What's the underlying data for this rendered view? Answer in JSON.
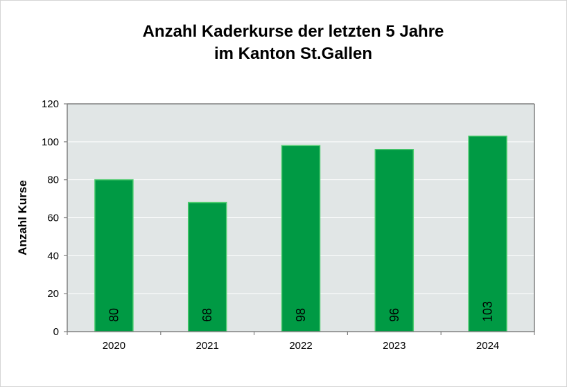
{
  "chart_data": {
    "type": "bar",
    "title": [
      "Anzahl Kaderkurse der letzten 5 Jahre",
      "im Kanton St.Gallen"
    ],
    "xlabel": "",
    "ylabel": "Anzahl Kurse",
    "categories": [
      "2020",
      "2021",
      "2022",
      "2023",
      "2024"
    ],
    "values": [
      80,
      68,
      98,
      96,
      103
    ],
    "data_labels": [
      "80",
      "68",
      "98",
      "96",
      "103"
    ],
    "ylim": [
      0,
      120
    ],
    "yticks": [
      0,
      20,
      40,
      60,
      80,
      100,
      120
    ],
    "ytick_labels": [
      "0",
      "20",
      "40",
      "60",
      "80",
      "100",
      "120"
    ],
    "grid": true,
    "legend": "none",
    "data_label_position": "inside-bottom, rotated vertical",
    "colors": {
      "bar": "#009a44",
      "bar_edge": "#4ccb6e",
      "plot_background": "#e1e6e6",
      "gridline": "#ffffff",
      "axis": "#808080"
    }
  }
}
